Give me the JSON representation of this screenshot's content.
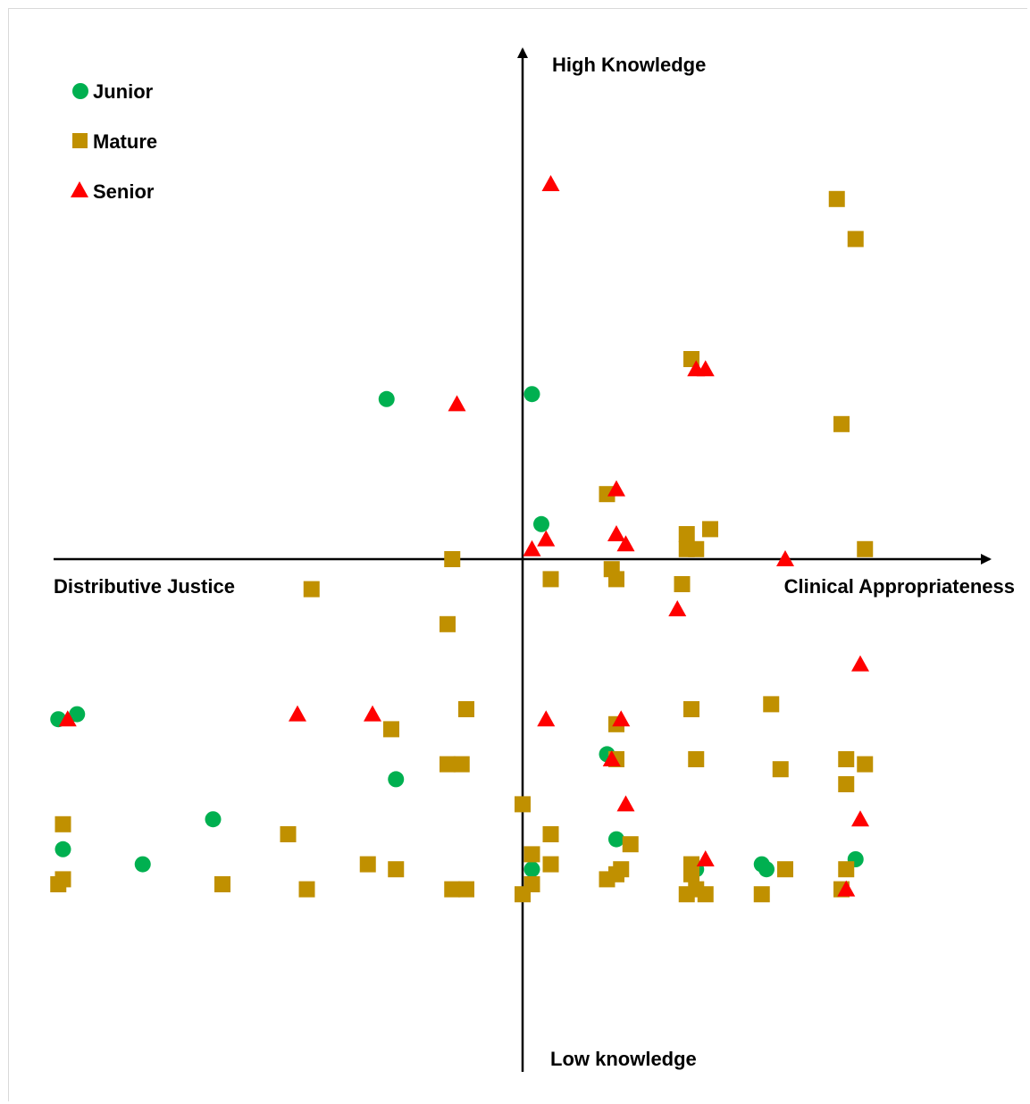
{
  "chart_data": {
    "type": "scatter",
    "xlabel_left": "Distributive Justice",
    "xlabel_right": "Clinical Appropriateness",
    "ylabel_top": "High Knowledge",
    "ylabel_bottom": "Low knowledge",
    "xlim": [
      -1,
      1
    ],
    "ylim": [
      -1,
      1
    ],
    "grid": false,
    "legend_position": "top-left",
    "series": [
      {
        "name": "Junior",
        "marker": "circle",
        "color": "#00b050",
        "points": [
          [
            -0.29,
            0.32
          ],
          [
            0.02,
            0.33
          ],
          [
            0.04,
            0.07
          ],
          [
            -0.99,
            -0.32
          ],
          [
            -0.95,
            -0.31
          ],
          [
            -0.27,
            -0.44
          ],
          [
            -0.66,
            -0.52
          ],
          [
            -0.98,
            -0.58
          ],
          [
            -0.81,
            -0.61
          ],
          [
            0.18,
            -0.39
          ],
          [
            0.2,
            -0.56
          ],
          [
            0.02,
            -0.62
          ],
          [
            0.37,
            -0.62
          ],
          [
            0.51,
            -0.61
          ],
          [
            0.52,
            -0.62
          ],
          [
            0.71,
            -0.6
          ]
        ]
      },
      {
        "name": "Mature",
        "marker": "square",
        "color": "#c09000",
        "points": [
          [
            0.67,
            0.72
          ],
          [
            0.71,
            0.64
          ],
          [
            0.36,
            0.4
          ],
          [
            0.68,
            0.27
          ],
          [
            0.18,
            0.13
          ],
          [
            0.35,
            0.05
          ],
          [
            0.4,
            0.06
          ],
          [
            0.35,
            0.02
          ],
          [
            0.37,
            0.02
          ],
          [
            0.73,
            0.02
          ],
          [
            -0.15,
            0.0
          ],
          [
            0.19,
            -0.02
          ],
          [
            0.2,
            -0.04
          ],
          [
            0.06,
            -0.04
          ],
          [
            0.34,
            -0.05
          ],
          [
            -0.45,
            -0.06
          ],
          [
            -0.16,
            -0.13
          ],
          [
            -0.12,
            -0.3
          ],
          [
            0.36,
            -0.3
          ],
          [
            0.53,
            -0.29
          ],
          [
            -0.28,
            -0.34
          ],
          [
            0.2,
            -0.33
          ],
          [
            -0.16,
            -0.41
          ],
          [
            -0.13,
            -0.41
          ],
          [
            0.37,
            -0.4
          ],
          [
            0.69,
            -0.4
          ],
          [
            0.73,
            -0.41
          ],
          [
            0.55,
            -0.42
          ],
          [
            0.69,
            -0.45
          ],
          [
            0.0,
            -0.49
          ],
          [
            0.2,
            -0.4
          ],
          [
            -0.98,
            -0.53
          ],
          [
            -0.5,
            -0.55
          ],
          [
            0.06,
            -0.55
          ],
          [
            0.23,
            -0.57
          ],
          [
            0.02,
            -0.59
          ],
          [
            -0.33,
            -0.61
          ],
          [
            -0.27,
            -0.62
          ],
          [
            0.06,
            -0.61
          ],
          [
            0.21,
            -0.62
          ],
          [
            0.2,
            -0.63
          ],
          [
            0.18,
            -0.64
          ],
          [
            0.36,
            -0.61
          ],
          [
            0.36,
            -0.63
          ],
          [
            0.56,
            -0.62
          ],
          [
            0.69,
            -0.62
          ],
          [
            -0.98,
            -0.64
          ],
          [
            -0.99,
            -0.65
          ],
          [
            -0.64,
            -0.65
          ],
          [
            -0.46,
            -0.66
          ],
          [
            -0.15,
            -0.66
          ],
          [
            -0.12,
            -0.66
          ],
          [
            0.02,
            -0.65
          ],
          [
            0.0,
            -0.67
          ],
          [
            0.35,
            -0.67
          ],
          [
            0.37,
            -0.66
          ],
          [
            0.39,
            -0.67
          ],
          [
            0.51,
            -0.67
          ],
          [
            0.68,
            -0.66
          ]
        ]
      },
      {
        "name": "Senior",
        "marker": "triangle",
        "color": "#ff0000",
        "points": [
          [
            0.06,
            0.75
          ],
          [
            0.37,
            0.38
          ],
          [
            0.39,
            0.38
          ],
          [
            -0.14,
            0.31
          ],
          [
            0.2,
            0.14
          ],
          [
            0.2,
            0.05
          ],
          [
            0.05,
            0.04
          ],
          [
            0.02,
            0.02
          ],
          [
            0.22,
            0.03
          ],
          [
            0.56,
            0.0
          ],
          [
            0.33,
            -0.1
          ],
          [
            0.72,
            -0.21
          ],
          [
            -0.97,
            -0.32
          ],
          [
            -0.48,
            -0.31
          ],
          [
            -0.32,
            -0.31
          ],
          [
            0.05,
            -0.32
          ],
          [
            0.21,
            -0.32
          ],
          [
            0.19,
            -0.4
          ],
          [
            0.22,
            -0.49
          ],
          [
            0.72,
            -0.52
          ],
          [
            0.39,
            -0.6
          ],
          [
            0.69,
            -0.66
          ]
        ]
      }
    ]
  }
}
